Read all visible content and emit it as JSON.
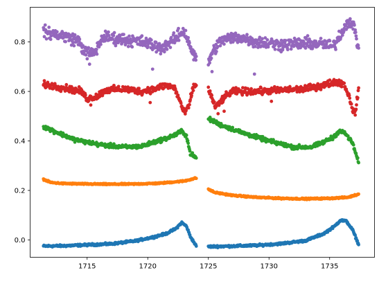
{
  "chart_data": {
    "type": "scatter",
    "title": "",
    "xlabel": "",
    "ylabel": "",
    "xlim": [
      1710.3,
      1738.7
    ],
    "ylim": [
      -0.07,
      0.94
    ],
    "x_ticks": [
      1715,
      1720,
      1725,
      1730,
      1735
    ],
    "y_ticks": [
      0.0,
      0.2,
      0.4,
      0.6,
      0.8
    ],
    "x_tick_labels": [
      "1715",
      "1720",
      "1725",
      "1730",
      "1735"
    ],
    "y_tick_labels": [
      "0.0",
      "0.2",
      "0.4",
      "0.6",
      "0.8"
    ],
    "grid": false,
    "legend": "none",
    "segments": [
      [
        1711.4,
        1724.0
      ],
      [
        1725.0,
        1737.4
      ]
    ],
    "series": [
      {
        "color": "#1f77b4",
        "noise": 0.003,
        "points": [
          [
            1711.4,
            -0.025
          ],
          [
            1713.0,
            -0.024
          ],
          [
            1715.0,
            -0.02
          ],
          [
            1717.0,
            -0.016
          ],
          [
            1719.0,
            -0.004
          ],
          [
            1720.5,
            0.012
          ],
          [
            1721.5,
            0.025
          ],
          [
            1722.3,
            0.045
          ],
          [
            1722.8,
            0.07
          ],
          [
            1723.2,
            0.055
          ],
          [
            1723.5,
            0.015
          ],
          [
            1724.0,
            -0.025
          ],
          [
            1725.0,
            -0.027
          ],
          [
            1727.0,
            -0.025
          ],
          [
            1729.0,
            -0.022
          ],
          [
            1731.0,
            -0.015
          ],
          [
            1733.0,
            -0.003
          ],
          [
            1734.5,
            0.025
          ],
          [
            1735.4,
            0.055
          ],
          [
            1735.9,
            0.08
          ],
          [
            1736.4,
            0.075
          ],
          [
            1736.9,
            0.04
          ],
          [
            1737.4,
            -0.02
          ]
        ]
      },
      {
        "color": "#ff7f0e",
        "noise": 0.002,
        "points": [
          [
            1711.4,
            0.245
          ],
          [
            1712.0,
            0.232
          ],
          [
            1713.0,
            0.228
          ],
          [
            1715.0,
            0.226
          ],
          [
            1717.0,
            0.225
          ],
          [
            1719.0,
            0.226
          ],
          [
            1721.0,
            0.229
          ],
          [
            1723.0,
            0.238
          ],
          [
            1724.0,
            0.25
          ],
          [
            1725.0,
            0.205
          ],
          [
            1725.5,
            0.192
          ],
          [
            1727.0,
            0.18
          ],
          [
            1729.0,
            0.172
          ],
          [
            1731.0,
            0.168
          ],
          [
            1733.0,
            0.166
          ],
          [
            1735.0,
            0.168
          ],
          [
            1736.5,
            0.172
          ],
          [
            1737.4,
            0.185
          ]
        ]
      },
      {
        "color": "#2ca02c",
        "noise": 0.006,
        "points": [
          [
            1711.4,
            0.458
          ],
          [
            1712.5,
            0.435
          ],
          [
            1714.0,
            0.405
          ],
          [
            1716.0,
            0.385
          ],
          [
            1718.0,
            0.375
          ],
          [
            1719.5,
            0.378
          ],
          [
            1720.5,
            0.395
          ],
          [
            1721.5,
            0.41
          ],
          [
            1722.3,
            0.425
          ],
          [
            1722.8,
            0.44
          ],
          [
            1723.2,
            0.42
          ],
          [
            1723.5,
            0.35
          ],
          [
            1724.0,
            0.33
          ],
          [
            1725.0,
            0.49
          ],
          [
            1726.0,
            0.465
          ],
          [
            1728.0,
            0.43
          ],
          [
            1730.0,
            0.4
          ],
          [
            1732.0,
            0.375
          ],
          [
            1733.5,
            0.375
          ],
          [
            1734.5,
            0.395
          ],
          [
            1735.3,
            0.415
          ],
          [
            1735.8,
            0.44
          ],
          [
            1736.3,
            0.43
          ],
          [
            1736.9,
            0.39
          ],
          [
            1737.4,
            0.31
          ]
        ]
      },
      {
        "color": "#d62728",
        "noise": 0.01,
        "points": [
          [
            1711.4,
            0.628
          ],
          [
            1713.0,
            0.615
          ],
          [
            1714.5,
            0.6
          ],
          [
            1715.0,
            0.57
          ],
          [
            1715.8,
            0.58
          ],
          [
            1716.5,
            0.605
          ],
          [
            1718.0,
            0.61
          ],
          [
            1719.5,
            0.6
          ],
          [
            1720.5,
            0.61
          ],
          [
            1721.5,
            0.625
          ],
          [
            1722.2,
            0.615
          ],
          [
            1722.7,
            0.555
          ],
          [
            1723.0,
            0.51
          ],
          [
            1723.4,
            0.54
          ],
          [
            1723.7,
            0.61
          ],
          [
            1724.0,
            0.63
          ],
          [
            1725.0,
            0.61
          ],
          [
            1725.6,
            0.535
          ],
          [
            1726.3,
            0.575
          ],
          [
            1727.0,
            0.6
          ],
          [
            1729.0,
            0.6
          ],
          [
            1731.0,
            0.605
          ],
          [
            1733.0,
            0.61
          ],
          [
            1734.5,
            0.625
          ],
          [
            1735.5,
            0.64
          ],
          [
            1736.2,
            0.63
          ],
          [
            1736.6,
            0.58
          ],
          [
            1736.9,
            0.53
          ],
          [
            1737.1,
            0.505
          ],
          [
            1737.4,
            0.62
          ]
        ]
      },
      {
        "color": "#9467bd",
        "noise": 0.018,
        "points": [
          [
            1711.4,
            0.84
          ],
          [
            1713.0,
            0.825
          ],
          [
            1714.3,
            0.805
          ],
          [
            1714.8,
            0.76
          ],
          [
            1715.5,
            0.75
          ],
          [
            1715.9,
            0.78
          ],
          [
            1716.3,
            0.82
          ],
          [
            1718.0,
            0.81
          ],
          [
            1719.5,
            0.8
          ],
          [
            1720.3,
            0.79
          ],
          [
            1721.0,
            0.775
          ],
          [
            1722.0,
            0.8
          ],
          [
            1722.6,
            0.83
          ],
          [
            1723.0,
            0.845
          ],
          [
            1723.4,
            0.8
          ],
          [
            1723.8,
            0.74
          ],
          [
            1724.0,
            0.73
          ],
          [
            1725.0,
            0.72
          ],
          [
            1725.6,
            0.78
          ],
          [
            1726.2,
            0.81
          ],
          [
            1727.5,
            0.82
          ],
          [
            1729.0,
            0.8
          ],
          [
            1731.0,
            0.79
          ],
          [
            1733.0,
            0.795
          ],
          [
            1734.5,
            0.79
          ],
          [
            1735.3,
            0.78
          ],
          [
            1736.0,
            0.84
          ],
          [
            1736.6,
            0.89
          ],
          [
            1737.0,
            0.86
          ],
          [
            1737.4,
            0.77
          ]
        ]
      }
    ],
    "outliers": [
      {
        "color": "#9467bd",
        "points": [
          [
            1720.4,
            0.69
          ],
          [
            1715.2,
            0.71
          ],
          [
            1725.3,
            0.68
          ],
          [
            1728.8,
            0.67
          ],
          [
            1731.0,
            0.76
          ],
          [
            1730.5,
            0.77
          ]
        ]
      },
      {
        "color": "#d62728",
        "points": [
          [
            1715.3,
            0.545
          ],
          [
            1720.2,
            0.555
          ],
          [
            1725.8,
            0.51
          ],
          [
            1726.3,
            0.52
          ],
          [
            1730.2,
            0.56
          ]
        ]
      }
    ]
  }
}
